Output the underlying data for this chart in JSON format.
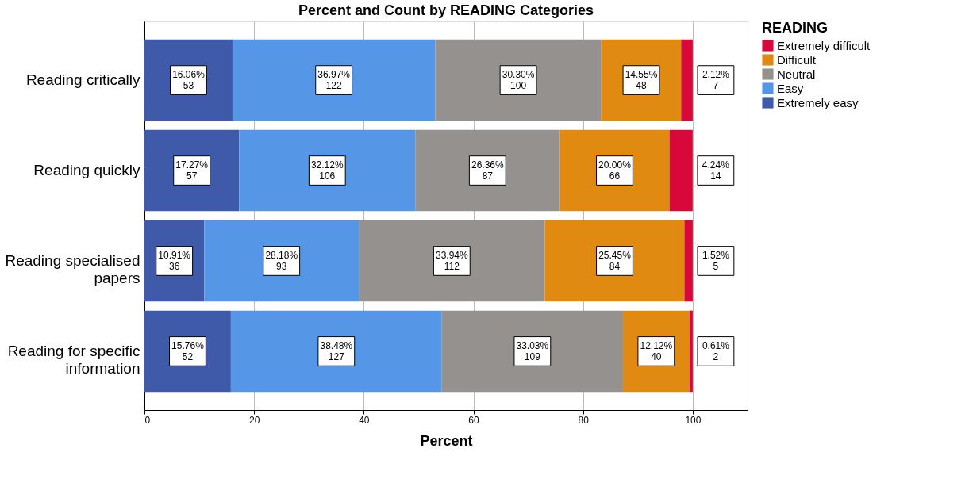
{
  "chart_data": {
    "type": "bar",
    "orientation": "horizontal",
    "stacked": true,
    "title": "Percent and Count by READING Categories",
    "xlabel": "Percent",
    "legend_title": "READING",
    "categories": [
      "Reading critically",
      "Reading quickly",
      "Reading specialised\npapers",
      "Reading for specific\ninformation"
    ],
    "series": [
      {
        "name": "Extremely easy",
        "color": "#3e5aa8",
        "values": [
          16.06,
          17.27,
          10.91,
          15.76
        ],
        "value_labels": [
          "16.06%\n53",
          "17.27%\n57",
          "10.91%\n36",
          "15.76%\n52"
        ]
      },
      {
        "name": "Easy",
        "color": "#5597e6",
        "values": [
          36.97,
          32.12,
          28.18,
          38.48
        ],
        "value_labels": [
          "36.97%\n122",
          "32.12%\n106",
          "28.18%\n93",
          "38.48%\n127"
        ]
      },
      {
        "name": "Neutral",
        "color": "#95918f",
        "values": [
          30.3,
          26.36,
          33.94,
          33.03
        ],
        "value_labels": [
          "30.30%\n100",
          "26.36%\n87",
          "33.94%\n112",
          "33.03%\n109"
        ]
      },
      {
        "name": "Difficult",
        "color": "#e08a12",
        "values": [
          14.55,
          20.0,
          25.45,
          12.12
        ],
        "value_labels": [
          "14.55%\n48",
          "20.00%\n66",
          "25.45%\n84",
          "12.12%\n40"
        ]
      },
      {
        "name": "Extremely difficult",
        "color": "#d9083a",
        "values": [
          2.12,
          4.24,
          1.52,
          0.61
        ],
        "value_labels": [
          "2.12%\n7",
          "4.24%\n14",
          "1.52%\n5",
          "0.61%\n2"
        ]
      }
    ],
    "xlim": [
      0,
      110
    ],
    "xticks": [
      0,
      20,
      40,
      60,
      80,
      100
    ],
    "grid": "x",
    "legend": "top right"
  }
}
